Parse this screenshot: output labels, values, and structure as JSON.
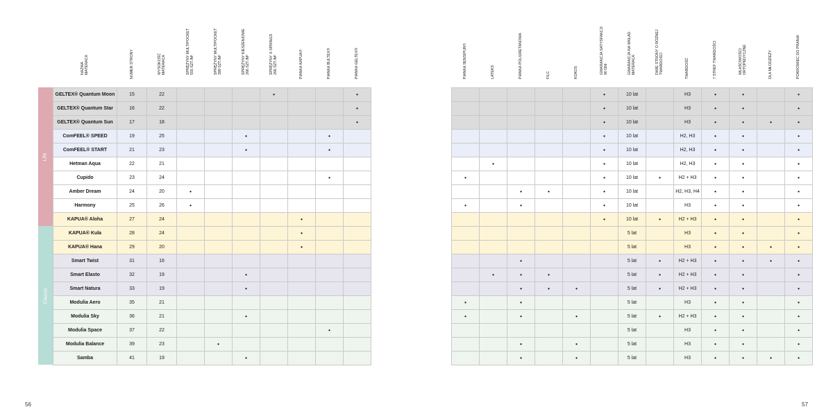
{
  "colors": {
    "grid": "#c9c9c9",
    "life_band": "#dea9b1",
    "classic_band": "#b6ddd6",
    "groups": {
      "grey": "#dcdcdc",
      "blue": "#e9eef9",
      "white": "#ffffff",
      "yellow": "#fdf5d6",
      "lavender": "#e7e6ee",
      "green": "#eef5ee"
    }
  },
  "categories": [
    {
      "label": "Life",
      "color": "#dea9b1"
    },
    {
      "label": "Classic",
      "color": "#b6ddd6"
    }
  ],
  "page_left": "56",
  "page_right": "57",
  "left_headers": [
    "NAZWA\nMATERACA",
    "NUMER STRONY",
    "WYSOKOŚĆ\nMATERACA",
    "SPRĘŻYNY MULTIPOCKET\n555 szt./m²",
    "SPRĘŻYNY MULTIPOCKET\n399 szt./m²",
    "SPRĘŻYNY KIESZENIOWE\n266 szt./m²",
    "SPRĘŻYNY X-SPRINGS\n266 szt./m²",
    "PIANKA KAPUA®",
    "PIANKA BULTEX®",
    "PIANKA GELTEX®"
  ],
  "right_headers": [
    "PIANKA SENSIPUR®",
    "LATEKS",
    "PIANKA POLIURETANOWA",
    "FILC",
    "KOKOS",
    "GWARANCJA SATYSFAKCJI\n90 DNI",
    "GWARANCJA NA WKŁAD\nMATERACA",
    "DWIE STRONY O RÓŻNEJ\nTWARDOŚCI",
    "TWARDOŚĆ",
    "7 STREF TWARDOŚCI",
    "WŁAŚCIWOŚCI\nORTOPEDYCZNE",
    "DLA MŁODZIEŻY",
    "POKROWIEC DO PRANIA"
  ],
  "rows": [
    {
      "group": "grey",
      "left": [
        "GELTEX® Quantum Moon",
        "15",
        "22",
        "",
        "",
        "",
        "•",
        "",
        "",
        "•"
      ],
      "right": [
        "",
        "",
        "",
        "",
        "",
        "•",
        "10 lat",
        "",
        "H3",
        "•",
        "•",
        "",
        "•"
      ]
    },
    {
      "group": "grey",
      "left": [
        "GELTEX® Quantum Star",
        "16",
        "22",
        "",
        "",
        "",
        "",
        "",
        "",
        "•"
      ],
      "right": [
        "",
        "",
        "",
        "",
        "",
        "•",
        "10 lat",
        "",
        "H3",
        "•",
        "•",
        "",
        "•"
      ]
    },
    {
      "group": "grey",
      "left": [
        "GELTEX® Quantum Sun",
        "17",
        "18",
        "",
        "",
        "",
        "",
        "",
        "",
        "•"
      ],
      "right": [
        "",
        "",
        "",
        "",
        "",
        "•",
        "10 lat",
        "",
        "H3",
        "•",
        "•",
        "•",
        "•"
      ]
    },
    {
      "group": "blue",
      "left": [
        "ComFEEL® SPEED",
        "19",
        "25",
        "",
        "",
        "•",
        "",
        "",
        "•",
        ""
      ],
      "right": [
        "",
        "",
        "",
        "",
        "",
        "•",
        "10 lat",
        "",
        "H2, H3",
        "•",
        "•",
        "",
        "•"
      ]
    },
    {
      "group": "blue",
      "left": [
        "ComFEEL® START",
        "21",
        "23",
        "",
        "",
        "•",
        "",
        "",
        "•",
        ""
      ],
      "right": [
        "",
        "",
        "",
        "",
        "",
        "•",
        "10 lat",
        "",
        "H2, H3",
        "•",
        "•",
        "",
        "•"
      ]
    },
    {
      "group": "white",
      "left": [
        "Hetman Aqua",
        "22",
        "21",
        "",
        "",
        "",
        "",
        "",
        "",
        ""
      ],
      "right": [
        "",
        "•",
        "",
        "",
        "",
        "•",
        "10 lat",
        "",
        "H2, H3",
        "•",
        "•",
        "",
        "•"
      ]
    },
    {
      "group": "white",
      "left": [
        "Cupido",
        "23",
        "24",
        "",
        "",
        "",
        "",
        "",
        "•",
        ""
      ],
      "right": [
        "•",
        "",
        "",
        "",
        "",
        "•",
        "10 lat",
        "•",
        "H2 + H3",
        "•",
        "•",
        "",
        "•"
      ]
    },
    {
      "group": "white",
      "left": [
        "Amber Dream",
        "24",
        "20",
        "•",
        "",
        "",
        "",
        "",
        "",
        ""
      ],
      "right": [
        "",
        "",
        "•",
        "•",
        "",
        "•",
        "10 lat",
        "",
        "H2, H3, H4",
        "•",
        "•",
        "",
        "•"
      ]
    },
    {
      "group": "white",
      "left": [
        "Harmony",
        "25",
        "26",
        "•",
        "",
        "",
        "",
        "",
        "",
        ""
      ],
      "right": [
        "•",
        "",
        "•",
        "",
        "",
        "•",
        "10 lat",
        "",
        "H3",
        "•",
        "•",
        "",
        "•"
      ]
    },
    {
      "group": "yellow",
      "left": [
        "KAPUA® Aloha",
        "27",
        "24",
        "",
        "",
        "",
        "",
        "•",
        "",
        ""
      ],
      "right": [
        "",
        "",
        "",
        "",
        "",
        "•",
        "10 lat",
        "•",
        "H2 + H3",
        "•",
        "•",
        "",
        "•"
      ]
    },
    {
      "group": "yellow",
      "left": [
        "KAPUA® Kula",
        "28",
        "24",
        "",
        "",
        "",
        "",
        "•",
        "",
        ""
      ],
      "right": [
        "",
        "",
        "",
        "",
        "",
        "",
        "5 lat",
        "",
        "H3",
        "•",
        "•",
        "",
        "•"
      ]
    },
    {
      "group": "yellow",
      "left": [
        "KAPUA® Hana",
        "29",
        "20",
        "",
        "",
        "",
        "",
        "•",
        "",
        ""
      ],
      "right": [
        "",
        "",
        "",
        "",
        "",
        "",
        "5 lat",
        "",
        "H3",
        "•",
        "•",
        "•",
        "•"
      ]
    },
    {
      "group": "lavender",
      "left": [
        "Smart Twist",
        "31",
        "16",
        "",
        "",
        "",
        "",
        "",
        "",
        ""
      ],
      "right": [
        "",
        "",
        "•",
        "",
        "",
        "",
        "5 lat",
        "•",
        "H2 + H3",
        "•",
        "•",
        "•",
        "•"
      ]
    },
    {
      "group": "lavender",
      "left": [
        "Smart Elasto",
        "32",
        "19",
        "",
        "",
        "•",
        "",
        "",
        "",
        ""
      ],
      "right": [
        "",
        "•",
        "•",
        "•",
        "",
        "",
        "5 lat",
        "•",
        "H2 + H3",
        "•",
        "•",
        "",
        "•"
      ]
    },
    {
      "group": "lavender",
      "left": [
        "Smart Natura",
        "33",
        "19",
        "",
        "",
        "•",
        "",
        "",
        "",
        ""
      ],
      "right": [
        "",
        "",
        "•",
        "•",
        "•",
        "",
        "5 lat",
        "•",
        "H2 + H3",
        "•",
        "•",
        "",
        "•"
      ]
    },
    {
      "group": "green",
      "left": [
        "Modulia Aero",
        "35",
        "21",
        "",
        "",
        "",
        "",
        "",
        "",
        ""
      ],
      "right": [
        "•",
        "",
        "•",
        "",
        "",
        "",
        "5 lat",
        "",
        "H3",
        "•",
        "•",
        "",
        "•"
      ]
    },
    {
      "group": "green",
      "left": [
        "Modulia Sky",
        "36",
        "21",
        "",
        "",
        "•",
        "",
        "",
        "",
        ""
      ],
      "right": [
        "•",
        "",
        "•",
        "",
        "•",
        "",
        "5 lat",
        "•",
        "H2 + H3",
        "•",
        "•",
        "",
        "•"
      ]
    },
    {
      "group": "green",
      "left": [
        "Modulia Space",
        "37",
        "22",
        "",
        "",
        "",
        "",
        "",
        "•",
        ""
      ],
      "right": [
        "",
        "",
        "",
        "",
        "",
        "",
        "5 lat",
        "",
        "H3",
        "•",
        "•",
        "",
        "•"
      ]
    },
    {
      "group": "green",
      "left": [
        "Modulia Balance",
        "39",
        "23",
        "",
        "•",
        "",
        "",
        "",
        "",
        ""
      ],
      "right": [
        "",
        "",
        "•",
        "",
        "•",
        "",
        "5 lat",
        "",
        "H3",
        "•",
        "•",
        "",
        "•"
      ]
    },
    {
      "group": "green",
      "left": [
        "Samba",
        "41",
        "19",
        "",
        "",
        "•",
        "",
        "",
        "",
        ""
      ],
      "right": [
        "",
        "",
        "•",
        "",
        "•",
        "",
        "5 lat",
        "",
        "H3",
        "•",
        "•",
        "•",
        "•"
      ]
    }
  ]
}
